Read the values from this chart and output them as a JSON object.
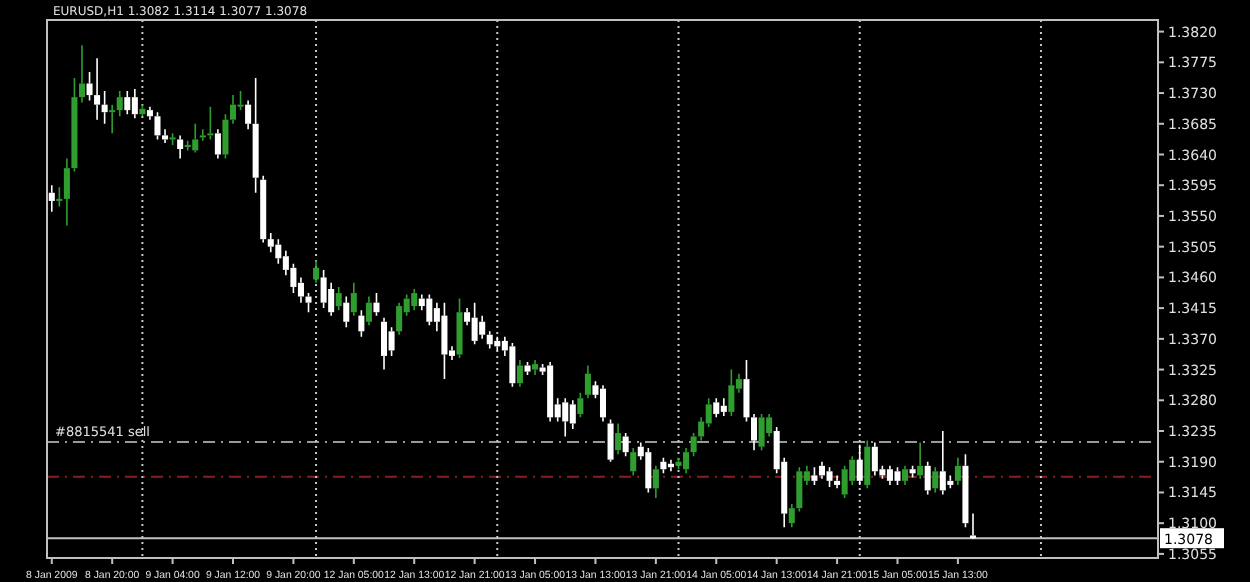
{
  "chart_data": {
    "type": "candlestick",
    "title": "EURUSD,H1  1.3082 1.3114 1.3077 1.3078",
    "colors": [
      "#ffffff",
      "#2f9e2f",
      "#2f9e2f",
      "#2f9e2f",
      "#2f9e2f",
      "#ffffff",
      "#ffffff",
      "#ffffff",
      "#2f9e2f",
      "#2f9e2f",
      "#ffffff",
      "#ffffff",
      "#2f9e2f",
      "#ffffff",
      "#ffffff",
      "#ffffff",
      "#2f9e2f",
      "#ffffff",
      "#2f9e2f",
      "#2f9e2f",
      "#2f9e2f",
      "#2f9e2f",
      "#ffffff",
      "#2f9e2f",
      "#2f9e2f",
      "#2f9e2f",
      "#ffffff",
      "#ffffff",
      "#ffffff",
      "#ffffff",
      "#ffffff",
      "#ffffff",
      "#ffffff",
      "#ffffff",
      "#ffffff",
      "#2f9e2f",
      "#ffffff",
      "#ffffff",
      "#2f9e2f",
      "#ffffff",
      "#2f9e2f",
      "#ffffff",
      "#2f9e2f",
      "#ffffff",
      "#ffffff",
      "#ffffff",
      "#2f9e2f",
      "#2f9e2f",
      "#2f9e2f",
      "#ffffff",
      "#ffffff",
      "#ffffff",
      "#ffffff",
      "#ffffff",
      "#2f9e2f",
      "#ffffff",
      "#ffffff",
      "#ffffff",
      "#ffffff",
      "#ffffff",
      "#ffffff",
      "#ffffff",
      "#2f9e2f",
      "#ffffff",
      "#2f9e2f",
      "#ffffff",
      "#ffffff",
      "#ffffff",
      "#ffffff",
      "#ffffff",
      "#2f9e2f",
      "#2f9e2f",
      "#ffffff",
      "#ffffff",
      "#ffffff",
      "#2f9e2f",
      "#ffffff",
      "#2f9e2f",
      "#ffffff",
      "#ffffff",
      "#2f9e2f",
      "#ffffff",
      "#ffffff",
      "#2f9e2f",
      "#2f9e2f",
      "#2f9e2f",
      "#2f9e2f",
      "#2f9e2f",
      "#ffffff",
      "#ffffff",
      "#2f9e2f",
      "#2f9e2f",
      "#ffffff",
      "#ffffff",
      "#2f9e2f",
      "#2f9e2f",
      "#ffffff",
      "#ffffff",
      "#2f9e2f",
      "#2f9e2f",
      "#2f9e2f",
      "#ffffff",
      "#ffffff",
      "#ffffff",
      "#ffffff",
      "#2f9e2f",
      "#2f9e2f",
      "#ffffff",
      "#2f9e2f",
      "#ffffff",
      "#ffffff",
      "#ffffff",
      "#ffffff",
      "#2f9e2f",
      "#ffffff",
      "#2f9e2f",
      "#ffffff",
      "#2f9e2f",
      "#ffffff",
      "#ffffff",
      "#2f9e2f",
      "#ffffff",
      "#ffffff",
      null,
      null,
      null,
      null,
      null,
      null,
      null,
      null,
      null,
      null,
      null,
      null,
      null,
      null,
      null,
      null,
      null,
      null,
      null,
      null,
      null,
      null,
      null,
      null
    ],
    "categories": [
      "8 Jan 2009",
      null,
      null,
      null,
      null,
      null,
      null,
      null,
      "8 Jan 20:00",
      null,
      null,
      null,
      null,
      null,
      null,
      null,
      "9 Jan 04:00",
      null,
      null,
      null,
      null,
      null,
      null,
      null,
      "9 Jan 12:00",
      null,
      null,
      null,
      null,
      null,
      null,
      null,
      "9 Jan 20:00",
      null,
      null,
      null,
      null,
      null,
      null,
      null,
      "12 Jan 05:00",
      null,
      null,
      null,
      null,
      null,
      null,
      null,
      "12 Jan 13:00",
      null,
      null,
      null,
      null,
      null,
      null,
      null,
      "12 Jan 21:00",
      null,
      null,
      null,
      null,
      null,
      null,
      null,
      "13 Jan 05:00",
      null,
      null,
      null,
      null,
      null,
      null,
      null,
      "13 Jan 13:00",
      null,
      null,
      null,
      null,
      null,
      null,
      null,
      "13 Jan 21:00",
      null,
      null,
      null,
      null,
      null,
      null,
      null,
      "14 Jan 05:00",
      null,
      null,
      null,
      null,
      null,
      null,
      null,
      "14 Jan 13:00",
      null,
      null,
      null,
      null,
      null,
      null,
      null,
      "14 Jan 21:00",
      null,
      null,
      null,
      null,
      null,
      null,
      null,
      "15 Jan 05:00",
      null,
      null,
      null,
      null,
      null,
      null,
      null,
      "15 Jan 13:00",
      null,
      null,
      null,
      null,
      null,
      null,
      null,
      null,
      null,
      null,
      null,
      null,
      null,
      null,
      null,
      null,
      null,
      null,
      null,
      null,
      null,
      null,
      null,
      null,
      null,
      null
    ],
    "ohlc": [
      [
        1.3584,
        1.3595,
        1.3556,
        1.3572
      ],
      [
        1.3572,
        1.3592,
        1.3564,
        1.3575
      ],
      [
        1.3575,
        1.3634,
        1.3536,
        1.362
      ],
      [
        1.362,
        1.3752,
        1.3615,
        1.3724
      ],
      [
        1.3724,
        1.38,
        1.3716,
        1.3744
      ],
      [
        1.3744,
        1.3761,
        1.3719,
        1.3727
      ],
      [
        1.3727,
        1.3781,
        1.3691,
        1.3713
      ],
      [
        1.3713,
        1.3733,
        1.3685,
        1.3702
      ],
      [
        1.3702,
        1.3713,
        1.3671,
        1.3705
      ],
      [
        1.3705,
        1.3733,
        1.3696,
        1.3724
      ],
      [
        1.3724,
        1.3733,
        1.3699,
        1.3705
      ],
      [
        1.3724,
        1.3736,
        1.3693,
        1.3699
      ],
      [
        1.3699,
        1.3713,
        1.3696,
        1.3707
      ],
      [
        1.3705,
        1.371,
        1.3691,
        1.3696
      ],
      [
        1.3696,
        1.3702,
        1.3662,
        1.3668
      ],
      [
        1.3668,
        1.3677,
        1.3657,
        1.3662
      ],
      [
        1.3662,
        1.3671,
        1.3654,
        1.3665
      ],
      [
        1.3662,
        1.3668,
        1.3634,
        1.3648
      ],
      [
        1.3651,
        1.366,
        1.3646,
        1.3654
      ],
      [
        1.3646,
        1.3685,
        1.3643,
        1.3662
      ],
      [
        1.3665,
        1.3677,
        1.366,
        1.3668
      ],
      [
        1.3668,
        1.371,
        1.3662,
        1.3671
      ],
      [
        1.3671,
        1.3677,
        1.3634,
        1.364
      ],
      [
        1.364,
        1.3699,
        1.3634,
        1.3691
      ],
      [
        1.3691,
        1.3727,
        1.3685,
        1.3713
      ],
      [
        1.371,
        1.3733,
        1.3705,
        1.3713
      ],
      [
        1.3713,
        1.3719,
        1.3677,
        1.3685
      ],
      [
        1.3685,
        1.3752,
        1.3584,
        1.3606
      ],
      [
        1.3603,
        1.3609,
        1.3511,
        1.3516
      ],
      [
        1.3516,
        1.3525,
        1.3497,
        1.3505
      ],
      [
        1.3508,
        1.3516,
        1.348,
        1.3488
      ],
      [
        1.3491,
        1.3499,
        1.3463,
        1.3471
      ],
      [
        1.3474,
        1.348,
        1.3437,
        1.3446
      ],
      [
        1.3452,
        1.346,
        1.3423,
        1.3432
      ],
      [
        1.3432,
        1.3437,
        1.3409,
        1.3423
      ],
      [
        1.3457,
        1.3485,
        1.3452,
        1.3474
      ],
      [
        1.346,
        1.3471,
        1.3415,
        1.3423
      ],
      [
        1.3443,
        1.3452,
        1.3404,
        1.3409
      ],
      [
        1.3418,
        1.3446,
        1.3412,
        1.3437
      ],
      [
        1.3423,
        1.3432,
        1.3387,
        1.3395
      ],
      [
        1.3409,
        1.3452,
        1.3404,
        1.3437
      ],
      [
        1.3404,
        1.3412,
        1.3373,
        1.3381
      ],
      [
        1.3395,
        1.3432,
        1.339,
        1.3423
      ],
      [
        1.3423,
        1.3437,
        1.3404,
        1.3409
      ],
      [
        1.3395,
        1.3401,
        1.3325,
        1.3345
      ],
      [
        1.3381,
        1.3387,
        1.3345,
        1.3353
      ],
      [
        1.3381,
        1.3423,
        1.3376,
        1.3418
      ],
      [
        1.3409,
        1.3435,
        1.3404,
        1.3429
      ],
      [
        1.3418,
        1.3443,
        1.3412,
        1.3437
      ],
      [
        1.3429,
        1.3435,
        1.3412,
        1.3418
      ],
      [
        1.3429,
        1.3435,
        1.339,
        1.3395
      ],
      [
        1.3415,
        1.3423,
        1.3381,
        1.3395
      ],
      [
        1.3404,
        1.3423,
        1.3311,
        1.3347
      ],
      [
        1.3353,
        1.3359,
        1.3339,
        1.3345
      ],
      [
        1.3347,
        1.3429,
        1.3342,
        1.3409
      ],
      [
        1.3409,
        1.3415,
        1.339,
        1.3395
      ],
      [
        1.3401,
        1.3423,
        1.3362,
        1.3367
      ],
      [
        1.3395,
        1.3404,
        1.337,
        1.3376
      ],
      [
        1.3376,
        1.3381,
        1.3356,
        1.3362
      ],
      [
        1.3367,
        1.3373,
        1.3353,
        1.3359
      ],
      [
        1.3367,
        1.3373,
        1.3345,
        1.3353
      ],
      [
        1.3359,
        1.3364,
        1.33,
        1.3305
      ],
      [
        1.3305,
        1.3339,
        1.33,
        1.3331
      ],
      [
        1.3331,
        1.3336,
        1.3317,
        1.3322
      ],
      [
        1.3325,
        1.3339,
        1.3317,
        1.3333
      ],
      [
        1.3328,
        1.3333,
        1.3317,
        1.3322
      ],
      [
        1.3331,
        1.3336,
        1.3249,
        1.3255
      ],
      [
        1.3274,
        1.3283,
        1.3249,
        1.3255
      ],
      [
        1.3277,
        1.3283,
        1.3227,
        1.3249
      ],
      [
        1.3274,
        1.328,
        1.3238,
        1.3246
      ],
      [
        1.326,
        1.3291,
        1.3255,
        1.3283
      ],
      [
        1.3288,
        1.3331,
        1.3283,
        1.3319
      ],
      [
        1.3302,
        1.3308,
        1.3283,
        1.3288
      ],
      [
        1.3297,
        1.3302,
        1.3249,
        1.3255
      ],
      [
        1.3246,
        1.3252,
        1.319,
        1.3193
      ],
      [
        1.3207,
        1.3246,
        1.3201,
        1.3232
      ],
      [
        1.3227,
        1.3232,
        1.3198,
        1.3204
      ],
      [
        1.3176,
        1.321,
        1.317,
        1.3204
      ],
      [
        1.3212,
        1.3218,
        1.3193,
        1.3198
      ],
      [
        1.3204,
        1.321,
        1.3145,
        1.3151
      ],
      [
        1.3151,
        1.3184,
        1.3137,
        1.3179
      ],
      [
        1.319,
        1.3196,
        1.3173,
        1.3179
      ],
      [
        1.3187,
        1.3193,
        1.3176,
        1.3182
      ],
      [
        1.3184,
        1.3196,
        1.3179,
        1.319
      ],
      [
        1.3179,
        1.321,
        1.3173,
        1.3204
      ],
      [
        1.3204,
        1.3232,
        1.3198,
        1.3227
      ],
      [
        1.3227,
        1.3255,
        1.3221,
        1.3249
      ],
      [
        1.3246,
        1.3283,
        1.3241,
        1.3274
      ],
      [
        1.3277,
        1.3283,
        1.3255,
        1.326
      ],
      [
        1.3272,
        1.3283,
        1.3257,
        1.3263
      ],
      [
        1.3263,
        1.3325,
        1.3257,
        1.3302
      ],
      [
        1.3297,
        1.3319,
        1.3291,
        1.3311
      ],
      [
        1.3311,
        1.3339,
        1.3249,
        1.3255
      ],
      [
        1.3255,
        1.326,
        1.3207,
        1.3221
      ],
      [
        1.3212,
        1.326,
        1.3207,
        1.3255
      ],
      [
        1.3232,
        1.326,
        1.3227,
        1.3255
      ],
      [
        1.3235,
        1.3241,
        1.3173,
        1.3179
      ],
      [
        1.319,
        1.3196,
        1.3094,
        1.3114
      ],
      [
        1.31,
        1.3128,
        1.3094,
        1.3122
      ],
      [
        1.3122,
        1.3182,
        1.3117,
        1.3176
      ],
      [
        1.3162,
        1.3184,
        1.3156,
        1.3176
      ],
      [
        1.317,
        1.3182,
        1.3156,
        1.3162
      ],
      [
        1.3184,
        1.319,
        1.3165,
        1.317
      ],
      [
        1.3176,
        1.3182,
        1.3153,
        1.3162
      ],
      [
        1.3162,
        1.317,
        1.3151,
        1.3156
      ],
      [
        1.3142,
        1.3184,
        1.3137,
        1.3179
      ],
      [
        1.3162,
        1.3198,
        1.3156,
        1.3193
      ],
      [
        1.3193,
        1.3215,
        1.3156,
        1.3162
      ],
      [
        1.3156,
        1.3221,
        1.3151,
        1.3212
      ],
      [
        1.3212,
        1.3218,
        1.317,
        1.3176
      ],
      [
        1.3179,
        1.3184,
        1.3165,
        1.317
      ],
      [
        1.3179,
        1.3184,
        1.3156,
        1.3162
      ],
      [
        1.3176,
        1.3182,
        1.3156,
        1.3162
      ],
      [
        1.3162,
        1.3184,
        1.3156,
        1.3179
      ],
      [
        1.3179,
        1.3184,
        1.3167,
        1.3173
      ],
      [
        1.317,
        1.3218,
        1.3165,
        1.3184
      ],
      [
        1.3184,
        1.319,
        1.3142,
        1.3148
      ],
      [
        1.3151,
        1.3182,
        1.3145,
        1.3176
      ],
      [
        1.3176,
        1.3235,
        1.3142,
        1.3148
      ],
      [
        1.3162,
        1.317,
        1.3151,
        1.3156
      ],
      [
        1.3162,
        1.3196,
        1.3156,
        1.3184
      ],
      [
        1.3184,
        1.3201,
        1.3094,
        1.31
      ],
      [
        1.3082,
        1.3114,
        1.3077,
        1.3078
      ],
      null,
      null,
      null,
      null,
      null,
      null,
      null,
      null,
      null,
      null,
      null,
      null,
      null,
      null,
      null,
      null,
      null,
      null,
      null,
      null,
      null,
      null,
      null,
      null
    ],
    "ylim": [
      1.3049,
      1.3837
    ],
    "yticks": [
      {
        "value": 1.3055,
        "label": "1.3055"
      },
      {
        "value": 1.31,
        "label": "1.3100"
      },
      {
        "value": 1.3145,
        "label": "1.3145"
      },
      {
        "value": 1.319,
        "label": "1.3190"
      },
      {
        "value": 1.3235,
        "label": "1.3235"
      },
      {
        "value": 1.328,
        "label": "1.3280"
      },
      {
        "value": 1.3325,
        "label": "1.3325"
      },
      {
        "value": 1.337,
        "label": "1.3370"
      },
      {
        "value": 1.3415,
        "label": "1.3415"
      },
      {
        "value": 1.346,
        "label": "1.3460"
      },
      {
        "value": 1.3505,
        "label": "1.3505"
      },
      {
        "value": 1.355,
        "label": "1.3550"
      },
      {
        "value": 1.3595,
        "label": "1.3595"
      },
      {
        "value": 1.364,
        "label": "1.3640"
      },
      {
        "value": 1.3685,
        "label": "1.3685"
      },
      {
        "value": 1.373,
        "label": "1.3730"
      },
      {
        "value": 1.3775,
        "label": "1.3775"
      },
      {
        "value": 1.382,
        "label": "1.3820"
      }
    ],
    "ref_lines": [
      {
        "axis": "y",
        "value": 1.3219,
        "label": "#8815541 sell",
        "color": "#9a9a9a",
        "line_style": "dashed"
      },
      {
        "axis": "y",
        "value": 1.3168,
        "color": "#8b1e1e",
        "line_style": "dashed"
      },
      {
        "axis": "y",
        "value": 1.3078,
        "label": "1.3078",
        "color": "#c0c0c0",
        "line_style": "solid"
      }
    ]
  }
}
